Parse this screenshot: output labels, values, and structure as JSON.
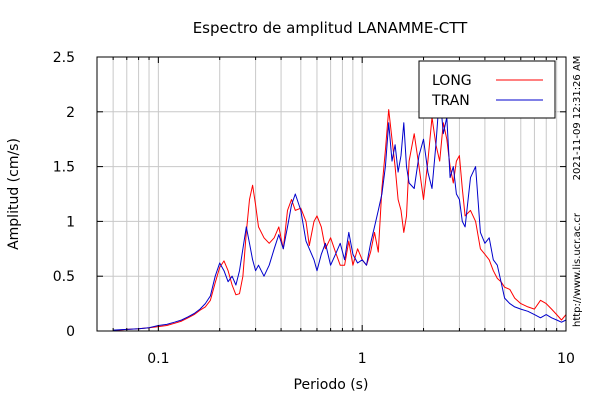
{
  "chart_data": {
    "type": "line",
    "title": "Espectro de amplitud LANAMME-CTT",
    "xlabel": "Periodo (s)",
    "ylabel": "Amplitud (cm/s)",
    "x_scale": "log",
    "xlim": [
      0.05,
      10
    ],
    "ylim": [
      0,
      2.5
    ],
    "grid": true,
    "legend_position": "top-right",
    "x_tick_labels": [
      {
        "value": 0.1,
        "label": "0.1"
      },
      {
        "value": 1,
        "label": "1"
      },
      {
        "value": 10,
        "label": "10"
      }
    ],
    "y_tick_labels": [
      {
        "value": 0,
        "label": "0"
      },
      {
        "value": 0.5,
        "label": "0.5"
      },
      {
        "value": 1,
        "label": "1"
      },
      {
        "value": 1.5,
        "label": "1.5"
      },
      {
        "value": 2,
        "label": "2"
      },
      {
        "value": 2.5,
        "label": "2.5"
      }
    ],
    "annotation_time": "2021-11-09 12:31:26 AM",
    "annotation_url": "http://www.lis.ucr.ac.cr",
    "series": [
      {
        "name": "LONG",
        "color": "#ff0000",
        "points": [
          [
            0.06,
            0.005
          ],
          [
            0.07,
            0.015
          ],
          [
            0.08,
            0.02
          ],
          [
            0.09,
            0.03
          ],
          [
            0.1,
            0.04
          ],
          [
            0.11,
            0.05
          ],
          [
            0.12,
            0.07
          ],
          [
            0.13,
            0.09
          ],
          [
            0.14,
            0.12
          ],
          [
            0.15,
            0.15
          ],
          [
            0.16,
            0.19
          ],
          [
            0.17,
            0.22
          ],
          [
            0.18,
            0.28
          ],
          [
            0.19,
            0.44
          ],
          [
            0.2,
            0.58
          ],
          [
            0.21,
            0.64
          ],
          [
            0.22,
            0.55
          ],
          [
            0.23,
            0.42
          ],
          [
            0.24,
            0.33
          ],
          [
            0.25,
            0.34
          ],
          [
            0.26,
            0.5
          ],
          [
            0.27,
            0.9
          ],
          [
            0.28,
            1.2
          ],
          [
            0.29,
            1.33
          ],
          [
            0.3,
            1.15
          ],
          [
            0.31,
            0.95
          ],
          [
            0.33,
            0.85
          ],
          [
            0.35,
            0.8
          ],
          [
            0.37,
            0.85
          ],
          [
            0.39,
            0.95
          ],
          [
            0.41,
            0.75
          ],
          [
            0.43,
            1.1
          ],
          [
            0.45,
            1.2
          ],
          [
            0.47,
            1.1
          ],
          [
            0.5,
            1.12
          ],
          [
            0.53,
            1.0
          ],
          [
            0.55,
            0.78
          ],
          [
            0.58,
            1.0
          ],
          [
            0.6,
            1.05
          ],
          [
            0.63,
            0.95
          ],
          [
            0.66,
            0.75
          ],
          [
            0.7,
            0.85
          ],
          [
            0.74,
            0.72
          ],
          [
            0.78,
            0.6
          ],
          [
            0.82,
            0.6
          ],
          [
            0.86,
            0.82
          ],
          [
            0.9,
            0.6
          ],
          [
            0.95,
            0.75
          ],
          [
            1.0,
            0.65
          ],
          [
            1.05,
            0.6
          ],
          [
            1.1,
            0.72
          ],
          [
            1.15,
            0.9
          ],
          [
            1.2,
            0.72
          ],
          [
            1.25,
            1.3
          ],
          [
            1.3,
            1.65
          ],
          [
            1.35,
            2.02
          ],
          [
            1.4,
            1.75
          ],
          [
            1.45,
            1.5
          ],
          [
            1.5,
            1.2
          ],
          [
            1.55,
            1.1
          ],
          [
            1.6,
            0.9
          ],
          [
            1.65,
            1.05
          ],
          [
            1.7,
            1.55
          ],
          [
            1.8,
            1.8
          ],
          [
            1.9,
            1.5
          ],
          [
            2.0,
            1.2
          ],
          [
            2.1,
            1.55
          ],
          [
            2.2,
            1.95
          ],
          [
            2.3,
            1.7
          ],
          [
            2.4,
            1.55
          ],
          [
            2.5,
            1.9
          ],
          [
            2.6,
            1.75
          ],
          [
            2.7,
            1.5
          ],
          [
            2.8,
            1.35
          ],
          [
            2.9,
            1.55
          ],
          [
            3.0,
            1.6
          ],
          [
            3.1,
            1.3
          ],
          [
            3.2,
            1.05
          ],
          [
            3.4,
            1.1
          ],
          [
            3.6,
            1.0
          ],
          [
            3.8,
            0.75
          ],
          [
            4.0,
            0.7
          ],
          [
            4.2,
            0.65
          ],
          [
            4.4,
            0.55
          ],
          [
            4.6,
            0.48
          ],
          [
            4.8,
            0.45
          ],
          [
            5.0,
            0.4
          ],
          [
            5.3,
            0.38
          ],
          [
            5.6,
            0.3
          ],
          [
            6.0,
            0.25
          ],
          [
            6.5,
            0.22
          ],
          [
            7.0,
            0.2
          ],
          [
            7.5,
            0.28
          ],
          [
            8.0,
            0.25
          ],
          [
            8.5,
            0.2
          ],
          [
            9.0,
            0.15
          ],
          [
            9.5,
            0.1
          ],
          [
            10.0,
            0.15
          ]
        ]
      },
      {
        "name": "TRAN",
        "color": "#0000cc",
        "points": [
          [
            0.06,
            0.008
          ],
          [
            0.07,
            0.015
          ],
          [
            0.08,
            0.02
          ],
          [
            0.09,
            0.03
          ],
          [
            0.1,
            0.05
          ],
          [
            0.11,
            0.06
          ],
          [
            0.12,
            0.08
          ],
          [
            0.13,
            0.1
          ],
          [
            0.14,
            0.13
          ],
          [
            0.15,
            0.16
          ],
          [
            0.16,
            0.2
          ],
          [
            0.17,
            0.25
          ],
          [
            0.18,
            0.32
          ],
          [
            0.19,
            0.5
          ],
          [
            0.2,
            0.62
          ],
          [
            0.21,
            0.55
          ],
          [
            0.22,
            0.45
          ],
          [
            0.23,
            0.5
          ],
          [
            0.24,
            0.42
          ],
          [
            0.25,
            0.55
          ],
          [
            0.26,
            0.75
          ],
          [
            0.27,
            0.95
          ],
          [
            0.28,
            0.8
          ],
          [
            0.29,
            0.65
          ],
          [
            0.3,
            0.55
          ],
          [
            0.31,
            0.6
          ],
          [
            0.33,
            0.5
          ],
          [
            0.35,
            0.6
          ],
          [
            0.37,
            0.75
          ],
          [
            0.39,
            0.88
          ],
          [
            0.41,
            0.75
          ],
          [
            0.43,
            0.95
          ],
          [
            0.45,
            1.15
          ],
          [
            0.47,
            1.25
          ],
          [
            0.5,
            1.1
          ],
          [
            0.53,
            0.82
          ],
          [
            0.55,
            0.75
          ],
          [
            0.58,
            0.65
          ],
          [
            0.6,
            0.55
          ],
          [
            0.63,
            0.7
          ],
          [
            0.66,
            0.8
          ],
          [
            0.7,
            0.6
          ],
          [
            0.74,
            0.7
          ],
          [
            0.78,
            0.8
          ],
          [
            0.82,
            0.65
          ],
          [
            0.86,
            0.9
          ],
          [
            0.9,
            0.7
          ],
          [
            0.95,
            0.62
          ],
          [
            1.0,
            0.65
          ],
          [
            1.05,
            0.6
          ],
          [
            1.1,
            0.8
          ],
          [
            1.15,
            0.95
          ],
          [
            1.2,
            1.1
          ],
          [
            1.25,
            1.25
          ],
          [
            1.3,
            1.5
          ],
          [
            1.35,
            1.9
          ],
          [
            1.4,
            1.55
          ],
          [
            1.45,
            1.7
          ],
          [
            1.5,
            1.45
          ],
          [
            1.55,
            1.6
          ],
          [
            1.6,
            1.9
          ],
          [
            1.65,
            1.5
          ],
          [
            1.7,
            1.35
          ],
          [
            1.8,
            1.3
          ],
          [
            1.9,
            1.6
          ],
          [
            2.0,
            1.75
          ],
          [
            2.1,
            1.45
          ],
          [
            2.2,
            1.3
          ],
          [
            2.3,
            1.7
          ],
          [
            2.4,
            2.18
          ],
          [
            2.5,
            1.8
          ],
          [
            2.6,
            1.95
          ],
          [
            2.7,
            1.4
          ],
          [
            2.8,
            1.5
          ],
          [
            2.9,
            1.25
          ],
          [
            3.0,
            1.2
          ],
          [
            3.1,
            1.0
          ],
          [
            3.2,
            0.95
          ],
          [
            3.4,
            1.4
          ],
          [
            3.6,
            1.5
          ],
          [
            3.8,
            0.9
          ],
          [
            4.0,
            0.8
          ],
          [
            4.2,
            0.85
          ],
          [
            4.4,
            0.65
          ],
          [
            4.6,
            0.6
          ],
          [
            4.8,
            0.45
          ],
          [
            5.0,
            0.3
          ],
          [
            5.3,
            0.25
          ],
          [
            5.6,
            0.22
          ],
          [
            6.0,
            0.2
          ],
          [
            6.5,
            0.18
          ],
          [
            7.0,
            0.15
          ],
          [
            7.5,
            0.12
          ],
          [
            8.0,
            0.15
          ],
          [
            8.5,
            0.12
          ],
          [
            9.0,
            0.1
          ],
          [
            9.5,
            0.08
          ],
          [
            10.0,
            0.1
          ]
        ]
      }
    ]
  }
}
